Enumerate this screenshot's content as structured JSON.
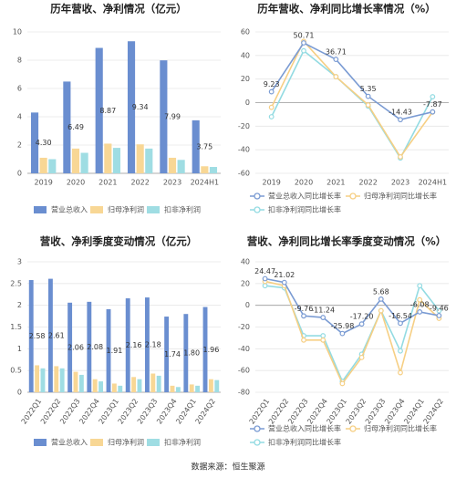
{
  "chart_data": [
    {
      "type": "bar",
      "title": "历年营收、净利情况（亿元）",
      "categories": [
        "2019",
        "2020",
        "2021",
        "2022",
        "2023",
        "2024H1"
      ],
      "series": [
        {
          "name": "营业总收入",
          "color": "#6a8ed0",
          "values": [
            4.3,
            6.49,
            8.87,
            9.34,
            7.99,
            3.75
          ],
          "value_labels": [
            "4.30",
            "6.49",
            "8.87",
            "9.34",
            "7.99",
            "3.75"
          ]
        },
        {
          "name": "归母净利润",
          "color": "#f8d795",
          "values": [
            1.1,
            1.75,
            2.1,
            2.05,
            1.1,
            0.5
          ]
        },
        {
          "name": "扣非净利润",
          "color": "#9fdde3",
          "values": [
            1.0,
            1.45,
            1.8,
            1.75,
            0.95,
            0.45
          ]
        }
      ],
      "ylim": [
        0,
        10
      ],
      "yticks": [
        0,
        2,
        4,
        6,
        8,
        10
      ],
      "grid": true
    },
    {
      "type": "line",
      "title": "历年营收、净利同比增长率情况（%）",
      "categories": [
        "2019",
        "2020",
        "2021",
        "2022",
        "2023",
        "2024H1"
      ],
      "series": [
        {
          "name": "营业总收入同比增长率",
          "color": "#7a9bd3",
          "values": [
            9.23,
            50.71,
            36.71,
            5.35,
            -14.43,
            -7.87
          ],
          "value_labels": [
            "9.23",
            "50.71",
            "36.71",
            "5.35",
            "-14.43",
            "-7.87"
          ]
        },
        {
          "name": "归母净利润同比增长率",
          "color": "#f6cf84",
          "values": [
            -4,
            52,
            22,
            -2,
            -46,
            -8
          ]
        },
        {
          "name": "扣非净利润同比增长率",
          "color": "#93dbe2",
          "values": [
            -12,
            44,
            22,
            -3,
            -47,
            5
          ]
        }
      ],
      "ylim": [
        -60,
        60
      ],
      "yticks": [
        -60,
        -40,
        -20,
        0,
        20,
        40,
        60
      ],
      "grid": true
    },
    {
      "type": "bar",
      "title": "营收、净利季度变动情况（亿元）",
      "categories": [
        "2022Q1",
        "2022Q2",
        "2022Q3",
        "2022Q4",
        "2023Q1",
        "2023Q2",
        "2023Q3",
        "2023Q4",
        "2024Q1",
        "2024Q2"
      ],
      "series": [
        {
          "name": "营业总收入",
          "color": "#6a8ed0",
          "values": [
            2.58,
            2.61,
            2.06,
            2.08,
            1.91,
            2.16,
            2.18,
            1.74,
            1.8,
            1.96
          ],
          "value_labels": [
            "2.58",
            "2.61",
            "2.06",
            "2.08",
            "1.91",
            "2.16",
            "2.18",
            "1.74",
            "1.80",
            "1.96"
          ]
        },
        {
          "name": "归母净利润",
          "color": "#f8d795",
          "values": [
            0.62,
            0.6,
            0.47,
            0.3,
            0.2,
            0.35,
            0.43,
            0.15,
            0.18,
            0.3
          ]
        },
        {
          "name": "扣非净利润",
          "color": "#9fdde3",
          "values": [
            0.55,
            0.55,
            0.4,
            0.25,
            0.15,
            0.3,
            0.38,
            0.12,
            0.15,
            0.28
          ]
        }
      ],
      "ylim": [
        0,
        3
      ],
      "yticks": [
        0,
        0.5,
        1,
        1.5,
        2,
        2.5,
        3
      ],
      "grid": true
    },
    {
      "type": "line",
      "title": "营收、净利同比增长率季度变动情况（%）",
      "categories": [
        "2022Q1",
        "2022Q2",
        "2022Q3",
        "2022Q4",
        "2023Q1",
        "2023Q2",
        "2023Q3",
        "2023Q4",
        "2024Q1",
        "2024Q2"
      ],
      "series": [
        {
          "name": "营业总收入同比增长率",
          "color": "#7a9bd3",
          "values": [
            24.47,
            21.02,
            -9.76,
            -11.24,
            -25.98,
            -17.2,
            5.68,
            -16.54,
            -6.08,
            -9.46
          ],
          "value_labels": [
            "24.47",
            "21.02",
            "-9.76",
            "-11.24",
            "-25.98",
            "-17.20",
            "5.68",
            "-16.54",
            "-6.08",
            "-9.46"
          ]
        },
        {
          "name": "归母净利润同比增长率",
          "color": "#f6cf84",
          "values": [
            22,
            18,
            -32,
            -32,
            -72,
            -48,
            -5,
            -62,
            5,
            -12
          ]
        },
        {
          "name": "扣非净利润同比增长率",
          "color": "#93dbe2",
          "values": [
            18,
            16,
            -28,
            -28,
            -70,
            -45,
            -5,
            -42,
            18,
            -5
          ]
        }
      ],
      "ylim": [
        -80,
        40
      ],
      "yticks": [
        -80,
        -60,
        -40,
        -20,
        0,
        20,
        40
      ],
      "grid": true
    }
  ],
  "source": "数据来源：恒生聚源"
}
